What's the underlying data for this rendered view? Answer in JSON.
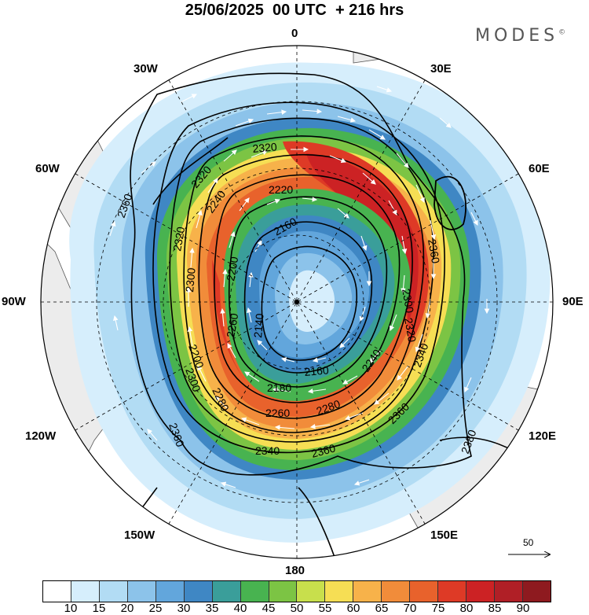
{
  "title": "25/06/2025  00 UTC  + 216 hrs",
  "brand": "MODES",
  "brand_mark": "©",
  "longitude_labels": {
    "top": "0",
    "bottom": "180",
    "left": "90W",
    "right": "90E",
    "w30": "30W",
    "e30": "30E",
    "w60": "60W",
    "e60": "60E",
    "w120": "120W",
    "e120": "120E",
    "w150": "150W",
    "e150": "150E"
  },
  "contour_labels": [
    "2320",
    "2320",
    "2360",
    "2220",
    "2240",
    "2320",
    "2160",
    "2200",
    "2300",
    "2140",
    "2260",
    "2360",
    "2300",
    "2200",
    "2160",
    "2180",
    "2240",
    "2300",
    "2280",
    "2260",
    "2280",
    "2340",
    "2360",
    "2340",
    "2360",
    "2360",
    "2380",
    "2320"
  ],
  "reference_vector": "50",
  "colorbar": {
    "colors": [
      "#ffffff",
      "#d6eefc",
      "#b2dcf4",
      "#8cc3ea",
      "#62a6dc",
      "#3f87c4",
      "#3a9e9a",
      "#48b350",
      "#7cc444",
      "#c8df4c",
      "#f6de54",
      "#f7b24a",
      "#f18c3a",
      "#e8622c",
      "#de3a26",
      "#cc2224",
      "#b01f26",
      "#8e1a1f"
    ],
    "ticks": [
      "10",
      "15",
      "20",
      "25",
      "30",
      "35",
      "40",
      "45",
      "50",
      "55",
      "60",
      "65",
      "70",
      "75",
      "80",
      "85",
      "90"
    ]
  }
}
